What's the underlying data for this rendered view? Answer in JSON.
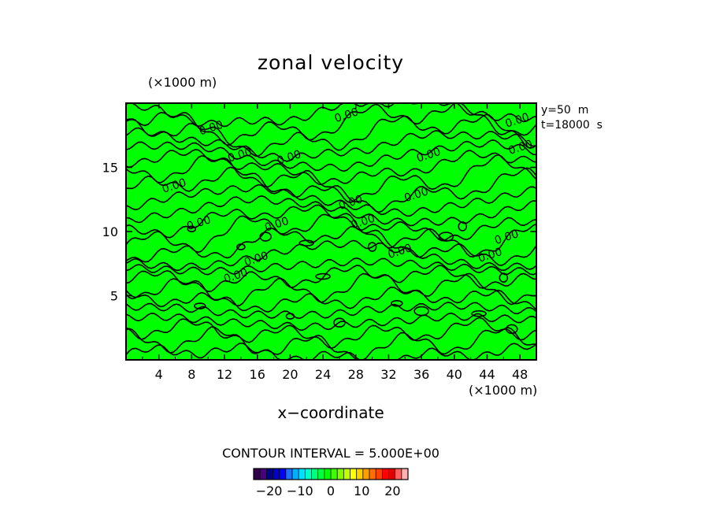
{
  "chart_data": {
    "type": "contour",
    "title": "zonal velocity",
    "xlabel": "x−coordinate",
    "x_unit_label": "(×1000 m)",
    "y_unit_label": "(×1000 m)",
    "xlim": [
      0,
      50
    ],
    "ylim": [
      0,
      20
    ],
    "x_ticks": [
      4,
      8,
      12,
      16,
      20,
      24,
      28,
      32,
      36,
      40,
      44,
      48
    ],
    "y_ticks": [
      5,
      10,
      15
    ],
    "info_lines": [
      "y=50  m",
      "t=18000  s"
    ],
    "contour_interval_label": "CONTOUR INTERVAL = 5.000E+00",
    "fill_color": "#00ff00",
    "line_color": "#000000",
    "contour_labels": [
      {
        "text": "0.00",
        "x": 27.0,
        "y": 18.8
      },
      {
        "text": "0.00",
        "x": 47.8,
        "y": 18.4
      },
      {
        "text": "0.00",
        "x": 48.2,
        "y": 16.3
      },
      {
        "text": "0.00",
        "x": 10.5,
        "y": 17.8
      },
      {
        "text": "0.00",
        "x": 14.0,
        "y": 15.7
      },
      {
        "text": "0.00",
        "x": 20.0,
        "y": 15.5
      },
      {
        "text": "0.00",
        "x": 37.0,
        "y": 15.7
      },
      {
        "text": "0.00",
        "x": 6.0,
        "y": 13.3
      },
      {
        "text": "0.00",
        "x": 27.5,
        "y": 12.0
      },
      {
        "text": "0.00",
        "x": 35.5,
        "y": 12.6
      },
      {
        "text": "0.00",
        "x": 9.0,
        "y": 10.4
      },
      {
        "text": "0.00",
        "x": 18.5,
        "y": 10.3
      },
      {
        "text": "0.00",
        "x": 29.0,
        "y": 10.5
      },
      {
        "text": "0.00",
        "x": 46.5,
        "y": 9.3
      },
      {
        "text": "0.00",
        "x": 16.0,
        "y": 7.6
      },
      {
        "text": "0.00",
        "x": 33.5,
        "y": 8.2
      },
      {
        "text": "0.00",
        "x": 44.5,
        "y": 7.9
      },
      {
        "text": "0.00",
        "x": 13.5,
        "y": 6.3
      }
    ],
    "colorbar": {
      "tick_labels": [
        "−20",
        "−10",
        "0",
        "10",
        "20"
      ],
      "tick_values": [
        -20,
        -10,
        0,
        10,
        20
      ],
      "range": [
        -25,
        25
      ],
      "colors": [
        "#30004a",
        "#4b0082",
        "#00008b",
        "#0000cd",
        "#0000ff",
        "#1e6fff",
        "#00b0ff",
        "#00e0ff",
        "#00ffcc",
        "#00ff7f",
        "#00ff40",
        "#00ff00",
        "#40ff00",
        "#80ff00",
        "#c0ff00",
        "#ffff00",
        "#ffd000",
        "#ffa000",
        "#ff7000",
        "#ff4000",
        "#ff0000",
        "#e00000",
        "#ff6060",
        "#ffb0b0"
      ]
    }
  }
}
